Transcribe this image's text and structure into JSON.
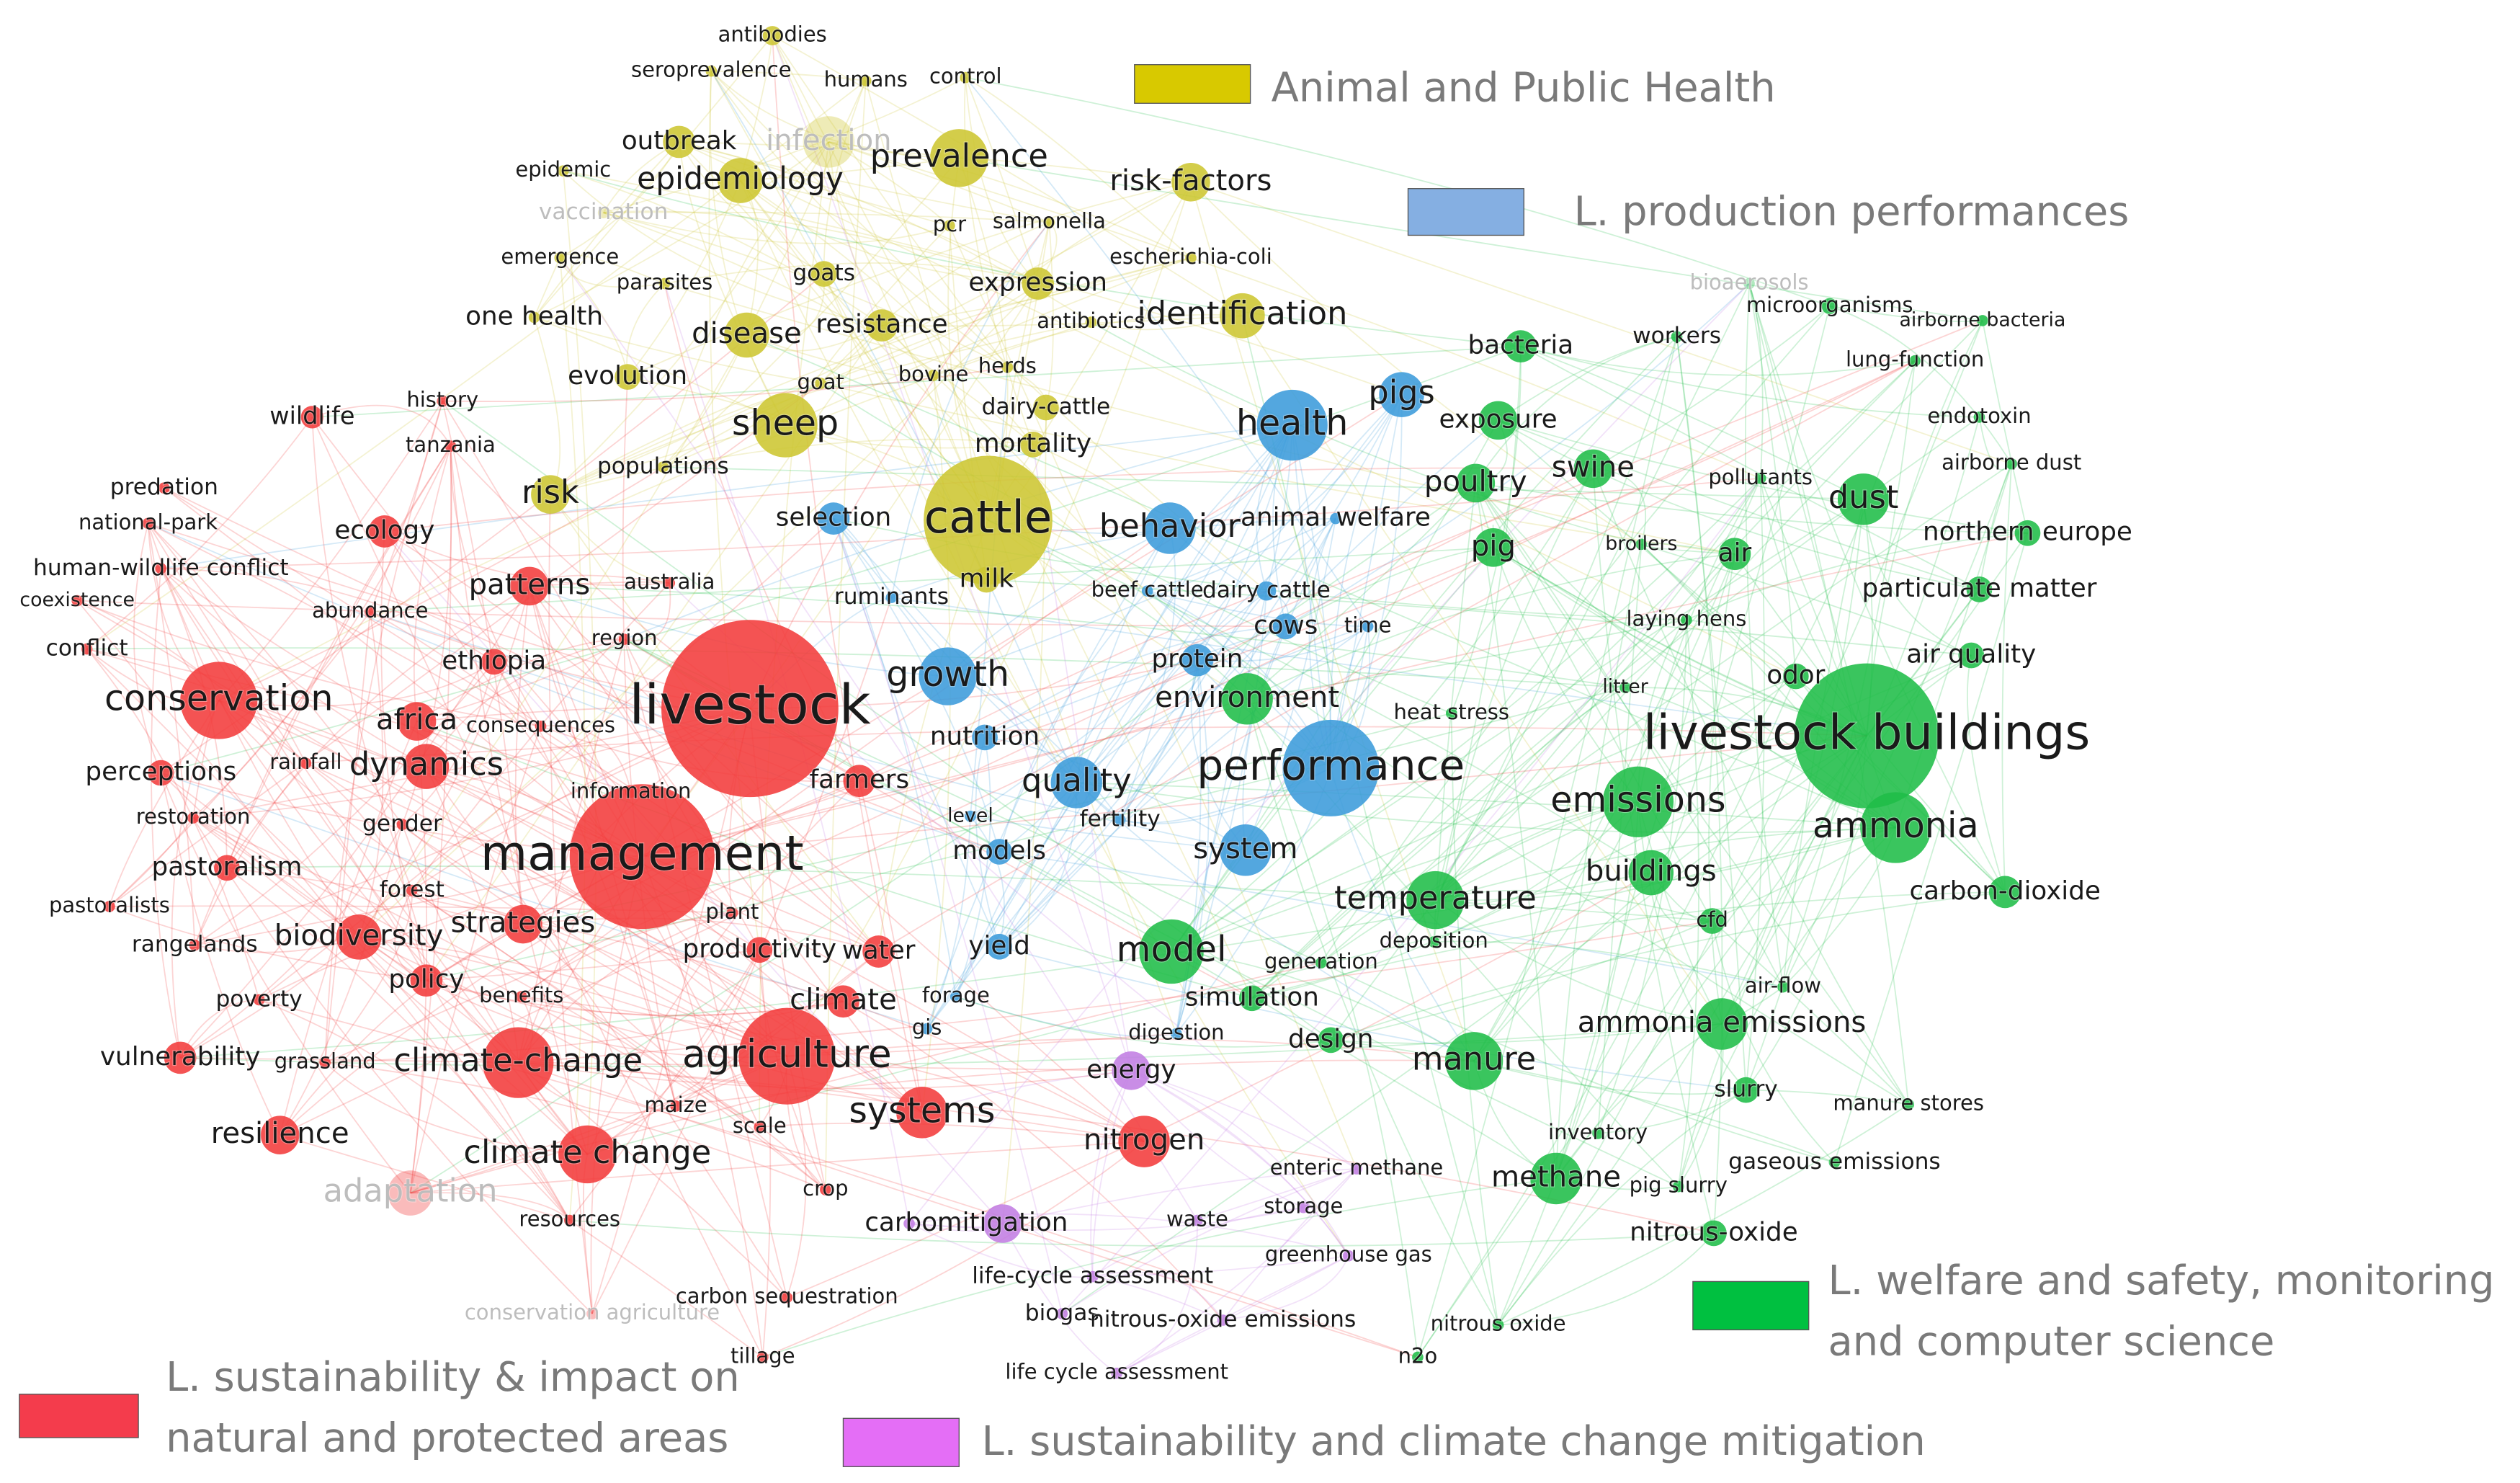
{
  "clusters": [
    {
      "legend": [
        "Animal and Public Health"
      ],
      "color": "#cdc631",
      "terms": [
        "antibodies",
        "seroprevalence",
        "humans",
        "control",
        "outbreak",
        "infection",
        "epidemic",
        "epidemiology",
        "prevalence",
        "risk-factors",
        "vaccination",
        "pcr",
        "salmonella",
        "emergence",
        "escherichia-coli",
        "parasites",
        "goats",
        "expression",
        "one health",
        "disease",
        "resistance",
        "antibiotics",
        "identification",
        "evolution",
        "goat",
        "bovine",
        "herds",
        "dairy-cattle",
        "sheep",
        "mortality",
        "risk",
        "cattle",
        "populations",
        "milk"
      ]
    },
    {
      "legend": [
        "L. production performances"
      ],
      "color": "#3b9bdb",
      "terms": [
        "selection",
        "behavior",
        "health",
        "pigs",
        "animal welfare",
        "ruminants",
        "beef cattle",
        "dairy cattle",
        "cows",
        "time",
        "growth",
        "nutrition",
        "protein",
        "quality",
        "performance",
        "fertility",
        "level",
        "models",
        "system",
        "yield",
        "forage",
        "gis",
        "digestion"
      ]
    },
    {
      "legend": [
        "L. welfare and safety, monitoring",
        "and computer science"
      ],
      "color": "#1fbd48",
      "terms": [
        "bioaerosols",
        "microorganisms",
        "airborne bacteria",
        "workers",
        "bacteria",
        "lung-function",
        "exposure",
        "endotoxin",
        "swine",
        "poultry",
        "pollutants",
        "airborne dust",
        "dust",
        "pig",
        "broilers",
        "air",
        "northern europe",
        "laying hens",
        "particulate matter",
        "air quality",
        "litter",
        "odor",
        "environment",
        "heat stress",
        "livestock buildings",
        "emissions",
        "ammonia",
        "buildings",
        "carbon-dioxide",
        "temperature",
        "deposition",
        "cfd",
        "generation",
        "model",
        "air-flow",
        "simulation",
        "ammonia emissions",
        "design",
        "manure",
        "slurry",
        "manure stores",
        "inventory",
        "gaseous emissions",
        "methane",
        "pig slurry",
        "nitrous-oxide",
        "nitrous oxide",
        "n2o"
      ]
    },
    {
      "legend": [
        "L. sustainability & impact on",
        "natural and protected areas"
      ],
      "color": "#f23b3b",
      "terms": [
        "wildlife",
        "history",
        "tanzania",
        "predation",
        "national-park",
        "ecology",
        "human-wildlife conflict",
        "coexistence",
        "abundance",
        "patterns",
        "australia",
        "region",
        "conflict",
        "ethiopia",
        "conservation",
        "africa",
        "livestock",
        "consequences",
        "rainfall",
        "dynamics",
        "perceptions",
        "information",
        "farmers",
        "restoration",
        "gender",
        "management",
        "pastoralism",
        "forest",
        "pastoralists",
        "plant",
        "strategies",
        "biodiversity",
        "rangelands",
        "productivity",
        "water",
        "policy",
        "benefits",
        "poverty",
        "climate",
        "vulnerability",
        "grassland",
        "climate-change",
        "agriculture",
        "systems",
        "maize",
        "scale",
        "resilience",
        "climate change",
        "nitrogen",
        "adaptation",
        "crop",
        "resources",
        "carbon sequestration",
        "conservation agriculture",
        "tillage"
      ]
    },
    {
      "legend": [
        "L. sustainability and climate change mitigation"
      ],
      "color": "#c27de2",
      "terms": [
        "energy",
        "enteric methane",
        "storage",
        "carbon",
        "mitigation",
        "waste",
        "greenhouse gas",
        "life-cycle assessment",
        "biogas",
        "nitrous-oxide emissions",
        "life cycle assessment"
      ]
    }
  ],
  "legend_colors": [
    "#d8c900",
    "#85afe2",
    "#00c040",
    "#f43c4c",
    "#e46ef6"
  ]
}
